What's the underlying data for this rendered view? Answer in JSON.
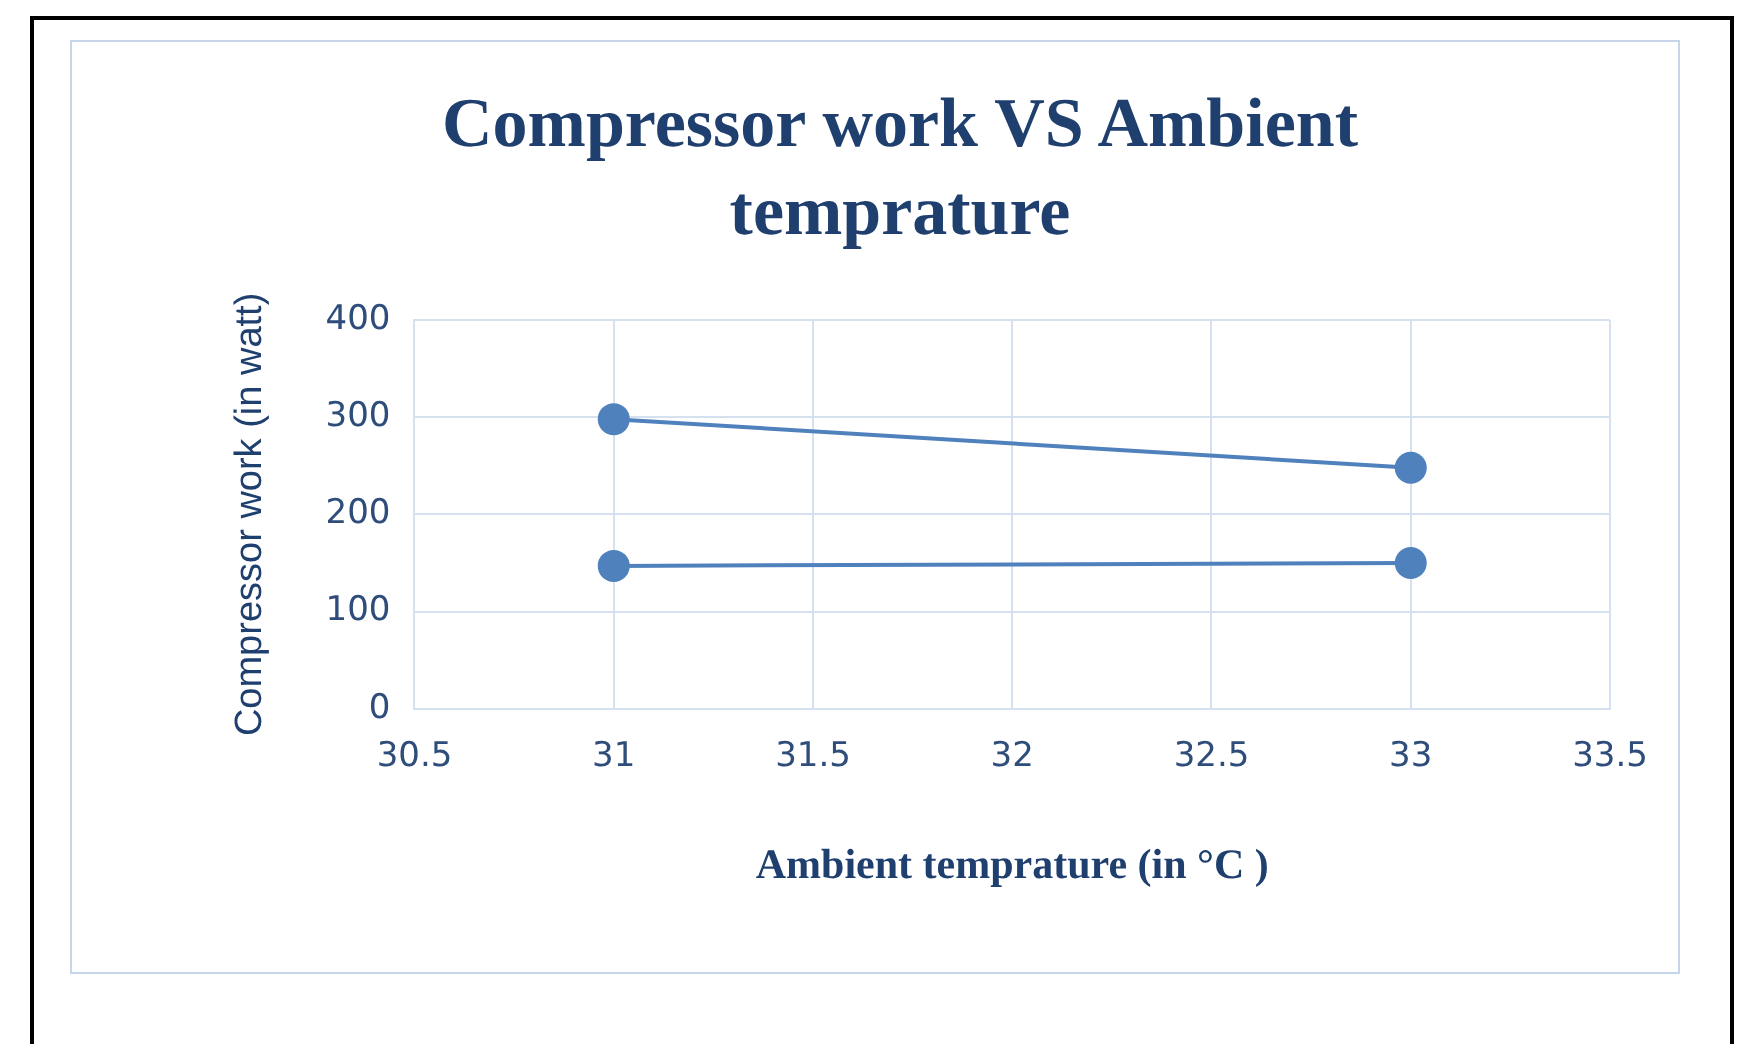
{
  "chart_data": {
    "type": "line",
    "title": "Compressor work VS Ambient temprature",
    "xlabel": "Ambient temprature (in °C )",
    "ylabel": "Compressor work (in watt)",
    "x": [
      31,
      33
    ],
    "series": [
      {
        "color": "#4f81bd",
        "values": [
          298,
          248
        ]
      },
      {
        "color": "#4f81bd",
        "values": [
          147,
          150
        ]
      }
    ],
    "xlim": [
      30.5,
      33.5
    ],
    "xticks": [
      30.5,
      31,
      31.5,
      32,
      32.5,
      33,
      33.5
    ],
    "ylim": [
      0,
      400
    ],
    "yticks": [
      0,
      100,
      200,
      300,
      400
    ],
    "grid": true,
    "legend": false,
    "marker": "circle",
    "line_style": "solid"
  }
}
